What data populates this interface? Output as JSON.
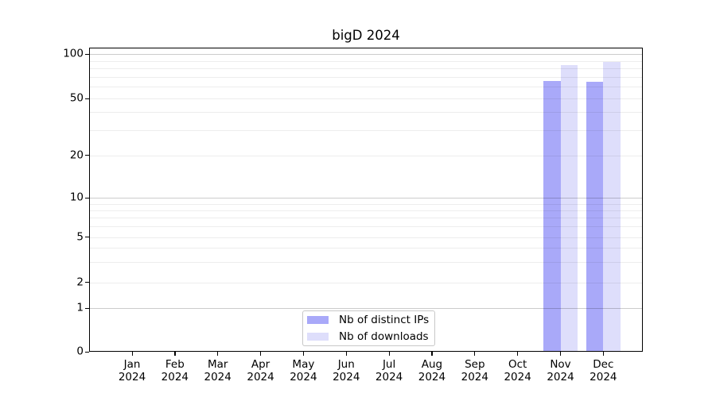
{
  "chart_data": {
    "type": "bar",
    "title": "bigD 2024",
    "categories": [
      {
        "month": "Jan",
        "year": "2024"
      },
      {
        "month": "Feb",
        "year": "2024"
      },
      {
        "month": "Mar",
        "year": "2024"
      },
      {
        "month": "Apr",
        "year": "2024"
      },
      {
        "month": "May",
        "year": "2024"
      },
      {
        "month": "Jun",
        "year": "2024"
      },
      {
        "month": "Jul",
        "year": "2024"
      },
      {
        "month": "Aug",
        "year": "2024"
      },
      {
        "month": "Sep",
        "year": "2024"
      },
      {
        "month": "Oct",
        "year": "2024"
      },
      {
        "month": "Nov",
        "year": "2024"
      },
      {
        "month": "Dec",
        "year": "2024"
      }
    ],
    "series": [
      {
        "name": "Nb of distinct IPs",
        "color": "#a9a9f9",
        "values": [
          0,
          0,
          0,
          0,
          0,
          0,
          0,
          0,
          0,
          0,
          66,
          65
        ]
      },
      {
        "name": "Nb of downloads",
        "color": "#dedefb",
        "values": [
          0,
          0,
          0,
          0,
          0,
          0,
          0,
          0,
          0,
          0,
          84,
          88
        ]
      }
    ],
    "y_axis": {
      "scale": "symlog",
      "ticks": [
        0,
        1,
        2,
        5,
        10,
        20,
        50,
        100
      ],
      "ylim": [
        0,
        110
      ],
      "major_gridlines": [
        1,
        10,
        100
      ],
      "minor_gridlines": [
        2,
        3,
        4,
        5,
        6,
        7,
        8,
        9,
        20,
        30,
        40,
        50,
        60,
        70,
        80,
        90
      ]
    },
    "legend": {
      "position": "bottom-center"
    },
    "grid": true
  },
  "colors": {
    "bar_distinct_ips": "#a9a9f9",
    "bar_downloads": "#dedefb",
    "grid_major": "rgba(0,0,0,0.20)",
    "grid_minor": "rgba(0,0,0,0.07)",
    "spine": "#000000",
    "legend_border": "#c8c8c8",
    "background": "#ffffff",
    "text": "#000000"
  }
}
